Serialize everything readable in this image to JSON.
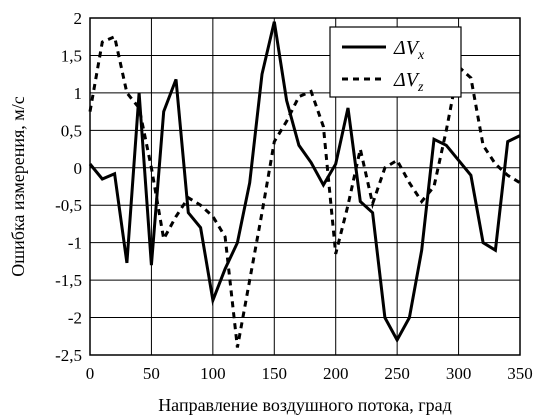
{
  "chart_data": {
    "type": "line",
    "title": "",
    "xlabel": "Направление воздушного потока, град",
    "ylabel": "Ошибка измерения, м/с",
    "xlim": [
      0,
      350
    ],
    "ylim": [
      -2.5,
      2
    ],
    "x_ticks": [
      "0",
      "50",
      "100",
      "150",
      "200",
      "250",
      "300",
      "350"
    ],
    "y_ticks": [
      "2",
      "1,5",
      "1",
      "0,5",
      "0",
      "-0,5",
      "-1",
      "-1,5",
      "-2",
      "-2,5"
    ],
    "grid": true,
    "legend_position": "top-right",
    "series": [
      {
        "name": "ΔVx",
        "legend_main": "ΔV",
        "legend_sub": "x",
        "style": "solid",
        "color": "#000000",
        "x": [
          0,
          10,
          20,
          30,
          40,
          50,
          60,
          70,
          80,
          90,
          100,
          110,
          120,
          130,
          140,
          150,
          160,
          170,
          180,
          190,
          200,
          210,
          220,
          230,
          240,
          250,
          260,
          270,
          280,
          290,
          300,
          310,
          320,
          330,
          340,
          350
        ],
        "values": [
          0.05,
          -0.15,
          -0.08,
          -1.27,
          1.0,
          -1.3,
          0.75,
          1.18,
          -0.6,
          -0.8,
          -1.77,
          -1.35,
          -1.0,
          -0.2,
          1.25,
          1.95,
          0.9,
          0.3,
          0.07,
          -0.23,
          0.05,
          0.8,
          -0.45,
          -0.6,
          -2.0,
          -2.3,
          -2.0,
          -1.1,
          0.38,
          0.3,
          0.1,
          -0.1,
          -1.0,
          -1.1,
          0.35,
          0.43
        ]
      },
      {
        "name": "ΔVz",
        "legend_main": "ΔV",
        "legend_sub": "z",
        "style": "dashed",
        "color": "#000000",
        "x": [
          0,
          10,
          20,
          30,
          40,
          50,
          60,
          70,
          80,
          90,
          100,
          110,
          120,
          130,
          140,
          150,
          160,
          170,
          180,
          190,
          200,
          210,
          220,
          230,
          240,
          250,
          260,
          270,
          280,
          290,
          300,
          310,
          320,
          330,
          340,
          350
        ],
        "values": [
          0.75,
          1.68,
          1.75,
          1.0,
          0.8,
          0.0,
          -0.95,
          -0.65,
          -0.4,
          -0.5,
          -0.65,
          -0.92,
          -2.4,
          -1.5,
          -0.6,
          0.35,
          0.62,
          0.95,
          1.02,
          0.55,
          -1.15,
          -0.5,
          0.25,
          -0.48,
          0.0,
          0.1,
          -0.2,
          -0.45,
          -0.25,
          0.5,
          1.35,
          1.2,
          0.3,
          0.05,
          -0.1,
          -0.2
        ]
      }
    ]
  }
}
